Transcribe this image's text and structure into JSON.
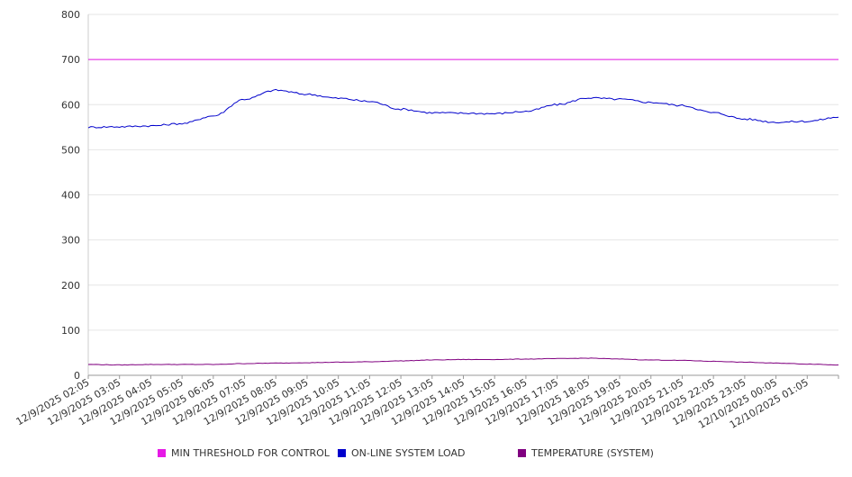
{
  "chart_data": {
    "type": "line",
    "title": "",
    "xlabel": "",
    "ylabel": "",
    "ylim": [
      0,
      800
    ],
    "yticks": [
      0,
      100,
      200,
      300,
      400,
      500,
      600,
      700,
      800
    ],
    "grid": true,
    "legend_position": "bottom",
    "x_ticks": [
      "12/9/2025 02:05",
      "12/9/2025 03:05",
      "12/9/2025 04:05",
      "12/9/2025 05:05",
      "12/9/2025 06:05",
      "12/9/2025 07:05",
      "12/9/2025 08:05",
      "12/9/2025 09:05",
      "12/9/2025 10:05",
      "12/9/2025 11:05",
      "12/9/2025 12:05",
      "12/9/2025 13:05",
      "12/9/2025 14:05",
      "12/9/2025 15:05",
      "12/9/2025 16:05",
      "12/9/2025 17:05",
      "12/9/2025 18:05",
      "12/9/2025 19:05",
      "12/9/2025 20:05",
      "12/9/2025 21:05",
      "12/9/2025 22:05",
      "12/9/2025 23:05",
      "12/10/2025 00:05",
      "12/10/2025 01:05"
    ],
    "series": [
      {
        "name": "MIN THRESHOLD FOR CONTROL",
        "color": "#e619e6",
        "values": [
          700,
          700,
          700,
          700,
          700,
          700,
          700,
          700,
          700,
          700,
          700,
          700,
          700,
          700,
          700,
          700,
          700,
          700,
          700,
          700,
          700,
          700,
          700,
          700,
          700
        ]
      },
      {
        "name": "ON-LINE SYSTEM LOAD",
        "color": "#0000cc",
        "values": [
          550,
          551,
          553,
          558,
          575,
          612,
          632,
          623,
          614,
          607,
          590,
          582,
          581,
          580,
          585,
          600,
          615,
          612,
          605,
          598,
          582,
          568,
          561,
          563,
          572
        ]
      },
      {
        "name": "TEMPERATURE (SYSTEM)",
        "color": "#800080",
        "values": [
          24,
          23,
          24,
          24,
          24,
          26,
          27,
          28,
          29,
          30,
          32,
          34,
          35,
          35,
          36,
          37,
          38,
          36,
          34,
          33,
          31,
          29,
          27,
          25,
          23
        ]
      }
    ]
  }
}
